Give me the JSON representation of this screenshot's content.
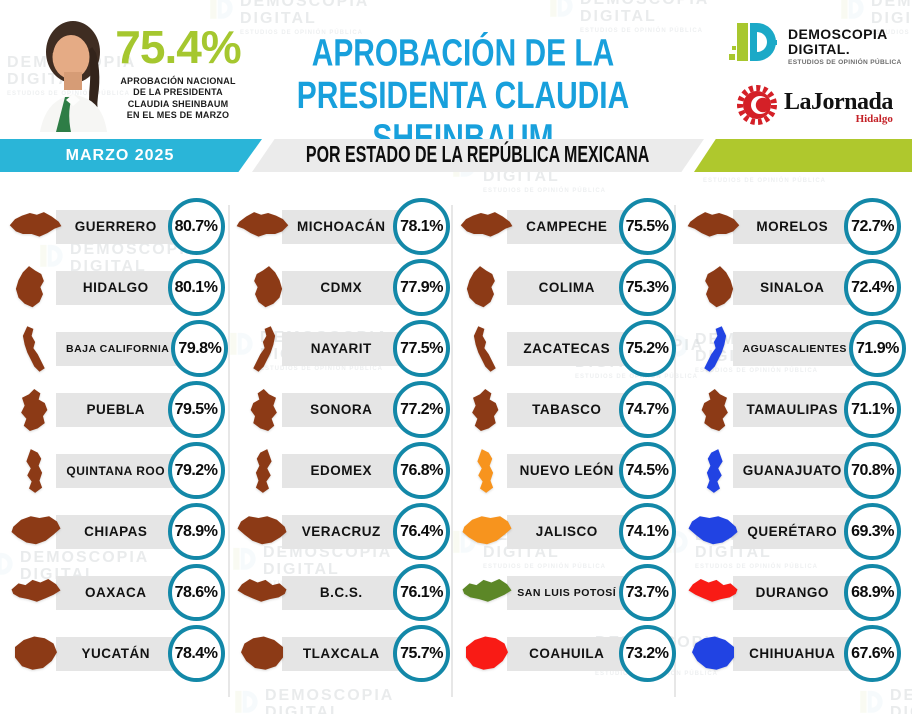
{
  "header": {
    "photo_icon": "claudia-sheinbaum-portrait",
    "national_approval": "75.4%",
    "national_caption_lines": [
      "APROBACIÓN NACIONAL",
      "DE LA PRESIDENTA",
      "CLAUDIA SHEINBAUM",
      "EN EL MES DE MARZO"
    ],
    "title_line1": "APROBACIÓN DE LA",
    "title_line2": "PRESIDENTA CLAUDIA SHEINBAUM",
    "demoscopia_logo": {
      "icon": "demoscopia-d-icon",
      "line1": "DEMOSCOPIA",
      "line2": "DIGITAL.",
      "tagline": "ESTUDIOS DE OPINIÓN PÚBLICA"
    },
    "jornada_logo": {
      "icon": "la-jornada-sun-icon",
      "name": "LaJornada",
      "edition": "Hidalgo"
    }
  },
  "banner": {
    "period_label": "MARZO 2025",
    "title": "POR ESTADO DE LA REPÚBLICA MEXICANA"
  },
  "watermark": {
    "line1": "DEMOSCOPIA",
    "line2": "DIGITAL",
    "line3": "ESTUDIOS DE OPINIÓN PÚBLICA"
  },
  "colors": {
    "accent_teal": "#2AB5D8",
    "accent_lime": "#AFC82D",
    "title_blue": "#18A0DC",
    "circle_border": "#1388A8",
    "state_brown": "#8C3A16",
    "state_orange": "#F7941E",
    "state_green": "#5C8727",
    "state_red": "#F91B15",
    "state_blue": "#2143E3"
  },
  "columns": [
    [
      {
        "name": "GUERRERO",
        "value": "80.7%",
        "color": "brown"
      },
      {
        "name": "HIDALGO",
        "value": "80.1%",
        "color": "brown"
      },
      {
        "name": "BAJA CALIFORNIA",
        "value": "79.8%",
        "color": "brown"
      },
      {
        "name": "PUEBLA",
        "value": "79.5%",
        "color": "brown"
      },
      {
        "name": "QUINTANA ROO",
        "value": "79.2%",
        "color": "brown"
      },
      {
        "name": "CHIAPAS",
        "value": "78.9%",
        "color": "brown"
      },
      {
        "name": "OAXACA",
        "value": "78.6%",
        "color": "brown"
      },
      {
        "name": "YUCATÁN",
        "value": "78.4%",
        "color": "brown"
      }
    ],
    [
      {
        "name": "MICHOACÁN",
        "value": "78.1%",
        "color": "brown"
      },
      {
        "name": "CDMX",
        "value": "77.9%",
        "color": "brown"
      },
      {
        "name": "NAYARIT",
        "value": "77.5%",
        "color": "brown"
      },
      {
        "name": "SONORA",
        "value": "77.2%",
        "color": "brown"
      },
      {
        "name": "EDOMEX",
        "value": "76.8%",
        "color": "brown"
      },
      {
        "name": "VERACRUZ",
        "value": "76.4%",
        "color": "brown"
      },
      {
        "name": "B.C.S.",
        "value": "76.1%",
        "color": "brown"
      },
      {
        "name": "TLAXCALA",
        "value": "75.7%",
        "color": "brown"
      }
    ],
    [
      {
        "name": "CAMPECHE",
        "value": "75.5%",
        "color": "brown"
      },
      {
        "name": "COLIMA",
        "value": "75.3%",
        "color": "brown"
      },
      {
        "name": "ZACATECAS",
        "value": "75.2%",
        "color": "brown"
      },
      {
        "name": "TABASCO",
        "value": "74.7%",
        "color": "brown"
      },
      {
        "name": "NUEVO LEÓN",
        "value": "74.5%",
        "color": "orange"
      },
      {
        "name": "JALISCO",
        "value": "74.1%",
        "color": "orange"
      },
      {
        "name": "SAN LUIS POTOSÍ",
        "value": "73.7%",
        "color": "green"
      },
      {
        "name": "COAHUILA",
        "value": "73.2%",
        "color": "red"
      }
    ],
    [
      {
        "name": "MORELOS",
        "value": "72.7%",
        "color": "brown"
      },
      {
        "name": "SINALOA",
        "value": "72.4%",
        "color": "brown"
      },
      {
        "name": "AGUASCALIENTES",
        "value": "71.9%",
        "color": "blue"
      },
      {
        "name": "TAMAULIPAS",
        "value": "71.1%",
        "color": "brown"
      },
      {
        "name": "GUANAJUATO",
        "value": "70.8%",
        "color": "blue"
      },
      {
        "name": "QUERÉTARO",
        "value": "69.3%",
        "color": "blue"
      },
      {
        "name": "DURANGO",
        "value": "68.9%",
        "color": "red"
      },
      {
        "name": "CHIHUAHUA",
        "value": "67.6%",
        "color": "blue"
      }
    ]
  ],
  "chart_data": {
    "type": "table",
    "title": "APROBACIÓN DE LA PRESIDENTA CLAUDIA SHEINBAUM",
    "subtitle": "POR ESTADO DE LA REPÚBLICA MEXICANA",
    "period": "MARZO 2025",
    "national": {
      "label": "APROBACIÓN NACIONAL DE LA PRESIDENTA CLAUDIA SHEINBAUM EN EL MES DE MARZO",
      "value": 75.4
    },
    "unit": "%",
    "categories": [
      "GUERRERO",
      "HIDALGO",
      "BAJA CALIFORNIA",
      "PUEBLA",
      "QUINTANA ROO",
      "CHIAPAS",
      "OAXACA",
      "YUCATÁN",
      "MICHOACÁN",
      "CDMX",
      "NAYARIT",
      "SONORA",
      "EDOMEX",
      "VERACRUZ",
      "B.C.S.",
      "TLAXCALA",
      "CAMPECHE",
      "COLIMA",
      "ZACATECAS",
      "TABASCO",
      "NUEVO LEÓN",
      "JALISCO",
      "SAN LUIS POTOSÍ",
      "COAHUILA",
      "MORELOS",
      "SINALOA",
      "AGUASCALIENTES",
      "TAMAULIPAS",
      "GUANAJUATO",
      "QUERÉTARO",
      "DURANGO",
      "CHIHUAHUA"
    ],
    "values": [
      80.7,
      80.1,
      79.8,
      79.5,
      79.2,
      78.9,
      78.6,
      78.4,
      78.1,
      77.9,
      77.5,
      77.2,
      76.8,
      76.4,
      76.1,
      75.7,
      75.5,
      75.3,
      75.2,
      74.7,
      74.5,
      74.1,
      73.7,
      73.2,
      72.7,
      72.4,
      71.9,
      71.1,
      70.8,
      69.3,
      68.9,
      67.6
    ]
  }
}
